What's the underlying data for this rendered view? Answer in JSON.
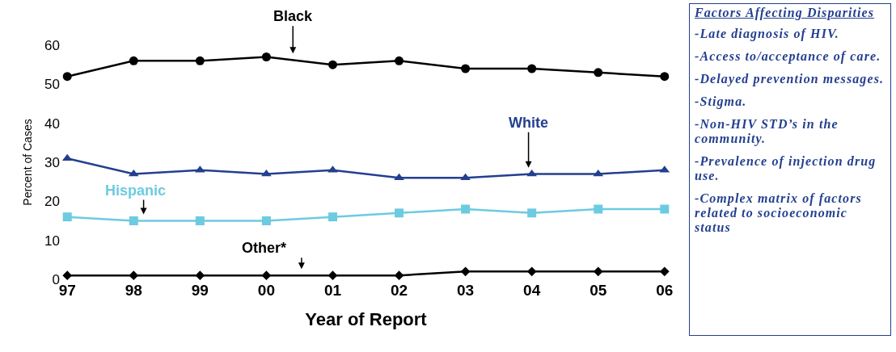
{
  "chart_data": {
    "type": "line",
    "xlabel": "Year of Report",
    "ylabel": "Percent of Cases",
    "categories": [
      "97",
      "98",
      "99",
      "00",
      "01",
      "02",
      "03",
      "04",
      "05",
      "06"
    ],
    "series": [
      {
        "name": "Black",
        "color": "#000000",
        "marker": "circle",
        "values": [
          52,
          56,
          56,
          57,
          55,
          56,
          54,
          54,
          53,
          52
        ]
      },
      {
        "name": "White",
        "color": "#233f8f",
        "marker": "triangle",
        "values": [
          31,
          27,
          28,
          27,
          28,
          26,
          26,
          27,
          27,
          28
        ]
      },
      {
        "name": "Hispanic",
        "color": "#6ccbe0",
        "marker": "square",
        "values": [
          16,
          15,
          15,
          15,
          16,
          17,
          18,
          17,
          18,
          18
        ]
      },
      {
        "name": "Other*",
        "color": "#000000",
        "marker": "diamond",
        "values": [
          1,
          1,
          1,
          1,
          1,
          1,
          2,
          2,
          2,
          2
        ]
      }
    ],
    "ylim": [
      0,
      60
    ],
    "yticks": [
      0,
      10,
      20,
      30,
      40,
      50,
      60
    ],
    "grid": false,
    "legend": false,
    "line_style": "solid",
    "annotations": [
      "Factors Affecting Disparities",
      "-Late diagnosis of HIV.",
      "-Access to/acceptance of care.",
      "-Delayed prevention messages.",
      "-Stigma.",
      "-Non-HIV STD’s in the community.",
      "-Prevalence of injection drug use.",
      "-Complex matrix of factors related to socioeconomic status"
    ]
  }
}
